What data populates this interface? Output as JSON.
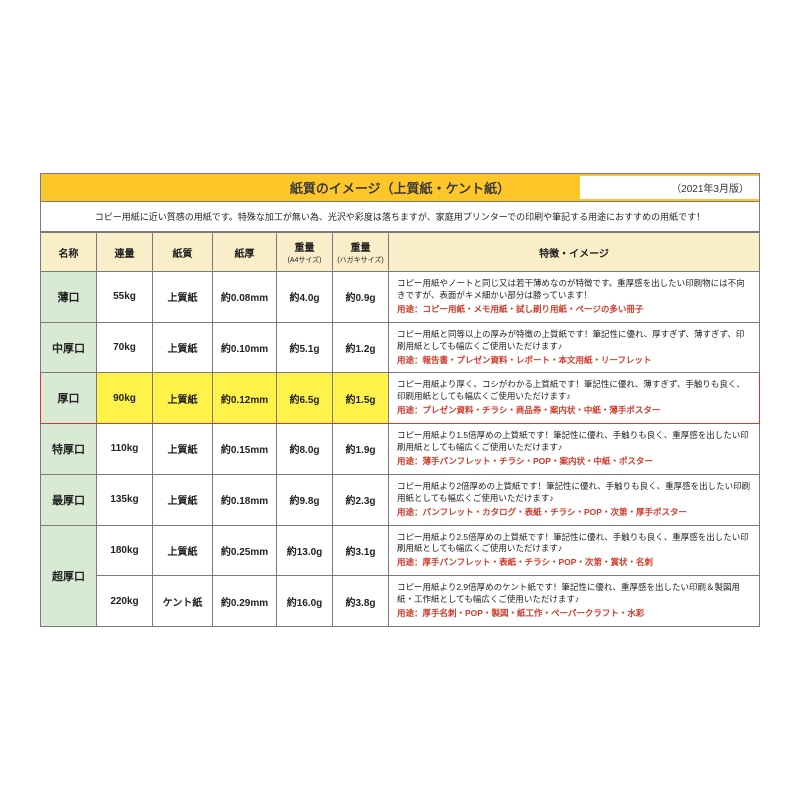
{
  "titlebar": {
    "title": "紙質のイメージ（上質紙・ケント紙）",
    "version": "（2021年3月版）"
  },
  "intro": "コピー用紙に近い質感の用紙です。特殊な加工が無い為、光沢や彩度は落ちますが、家庭用プリンターでの印刷や筆記する用途におすすめの用紙です！",
  "headers": {
    "name": "名称",
    "ream": "連量",
    "qual": "紙質",
    "thick": "紙厚",
    "wA4": "重量",
    "wA4sub": "(A4サイズ)",
    "wPC": "重量",
    "wPCsub": "(ハガキサイズ)",
    "desc": "特徴・イメージ"
  },
  "rows": [
    {
      "name": "薄口",
      "ream": "55kg",
      "qual": "上質紙",
      "thick": "約0.08mm",
      "wA4": "約4.0g",
      "wPC": "約0.9g",
      "desc1": "コピー用紙やノートと同じ又は若干薄めなのが特徴です。重厚感を出したい印刷物には不向きですが、表面がキメ細かい部分は勝っています！",
      "use": "用途：コピー用紙・メモ用紙・試し刷り用紙・ページの多い冊子",
      "hl": false,
      "rowspan": 1
    },
    {
      "name": "中厚口",
      "ream": "70kg",
      "qual": "上質紙",
      "thick": "約0.10mm",
      "wA4": "約5.1g",
      "wPC": "約1.2g",
      "desc1": "コピー用紙と同等以上の厚みが特徴の上質紙です！筆記性に優れ、厚すぎず、薄すぎず、印刷用紙としても幅広くご使用いただけます♪",
      "use": "用途：報告書・プレゼン資料・レポート・本文用紙・リーフレット",
      "hl": false,
      "rowspan": 1
    },
    {
      "name": "厚口",
      "ream": "90kg",
      "qual": "上質紙",
      "thick": "約0.12mm",
      "wA4": "約6.5g",
      "wPC": "約1.5g",
      "desc1": "コピー用紙より厚く、コシがわかる上質紙です！筆記性に優れ、薄すぎず、手触りも良く、印刷用紙としても幅広くご使用いただけます♪",
      "use": "用途：プレゼン資料・チラシ・商品券・案内状・中紙・薄手ポスター",
      "hl": true,
      "rowspan": 1
    },
    {
      "name": "特厚口",
      "ream": "110kg",
      "qual": "上質紙",
      "thick": "約0.15mm",
      "wA4": "約8.0g",
      "wPC": "約1.9g",
      "desc1": "コピー用紙より1.5倍厚めの上質紙です！筆記性に優れ、手触りも良く、重厚感を出したい印刷用紙としても幅広くご使用いただけます♪",
      "use": "用途：薄手パンフレット・チラシ・POP・案内状・中紙・ポスター",
      "hl": false,
      "rowspan": 1
    },
    {
      "name": "最厚口",
      "ream": "135kg",
      "qual": "上質紙",
      "thick": "約0.18mm",
      "wA4": "約9.8g",
      "wPC": "約2.3g",
      "desc1": "コピー用紙より2倍厚めの上質紙です！筆記性に優れ、手触りも良く、重厚感を出したい印刷用紙としても幅広くご使用いただけます♪",
      "use": "用途：パンフレット・カタログ・表紙・チラシ・POP・次第・厚手ポスター",
      "hl": false,
      "rowspan": 1
    },
    {
      "name": "超厚口",
      "ream": "180kg",
      "qual": "上質紙",
      "thick": "約0.25mm",
      "wA4": "約13.0g",
      "wPC": "約3.1g",
      "desc1": "コピー用紙より2.5倍厚めの上質紙です！筆記性に優れ、手触りも良く、重厚感を出したい印刷用紙としても幅広くご使用いただけます♪",
      "use": "用途：厚手パンフレット・表紙・チラシ・POP・次第・賞状・名刺",
      "hl": false,
      "rowspan": 2
    },
    {
      "name": "",
      "ream": "220kg",
      "qual": "ケント紙",
      "thick": "約0.29mm",
      "wA4": "約16.0g",
      "wPC": "約3.8g",
      "desc1": "コピー用紙より2.9倍厚めのケント紙です！筆記性に優れ、重厚感を出したい印刷＆製図用紙・工作紙としても幅広くご使用いただけます♪",
      "use": "用途：厚手名刺・POP・製図・紙工作・ペーパークラフト・水彩",
      "hl": false,
      "rowspan": 0
    }
  ],
  "colors": {
    "title_bg": "#ffc629",
    "header_bg": "#f9eec8",
    "name_bg": "#d9ead4",
    "highlight_bg": "#fff24a",
    "highlight_border": "#d23a2a",
    "use_text": "#d23a2a",
    "border": "#7a7a7a"
  }
}
